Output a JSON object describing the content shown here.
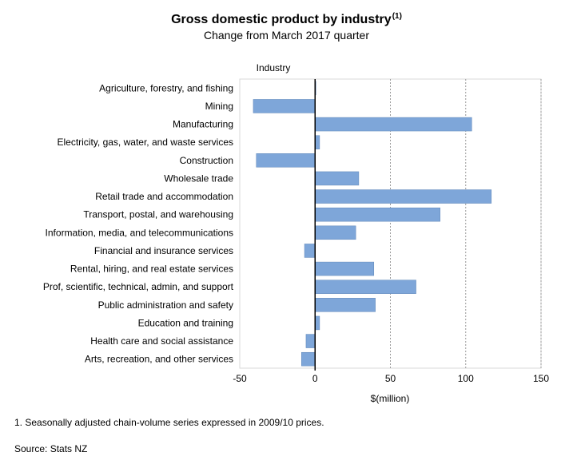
{
  "chart_data": {
    "type": "bar",
    "orientation": "horizontal",
    "title": "Gross domestic product by industry",
    "title_footnote_marker": "(1)",
    "subtitle": "Change from March 2017 quarter",
    "category_axis_label": "Industry",
    "xlabel": "$(million)",
    "xlim": [
      -50,
      150
    ],
    "xticks": [
      -50,
      0,
      50,
      100,
      150
    ],
    "grid": "vertical dashed",
    "bar_color": "#7EA6D9",
    "bar_edge_color": "#5F86B8",
    "categories": [
      "Agriculture, forestry, and fishing",
      "Mining",
      "Manufacturing",
      "Electricity, gas, water, and waste services",
      "Construction",
      "Wholesale trade",
      "Retail trade and accommodation",
      "Transport, postal, and warehousing",
      "Information, media, and telecommunications",
      "Financial and insurance services",
      "Rental, hiring, and real estate services",
      "Prof, scientific, technical, admin, and support",
      "Public administration and safety",
      "Education and training",
      "Health care and social assistance",
      "Arts, recreation, and other services"
    ],
    "values": [
      0.5,
      -41,
      104,
      3,
      -39,
      29,
      117,
      83,
      27,
      -7,
      39,
      67,
      40,
      3,
      -6,
      -9
    ]
  },
  "footnote": "1. Seasonally adjusted chain-volume series expressed in 2009/10 prices.",
  "source": "Source: Stats NZ"
}
